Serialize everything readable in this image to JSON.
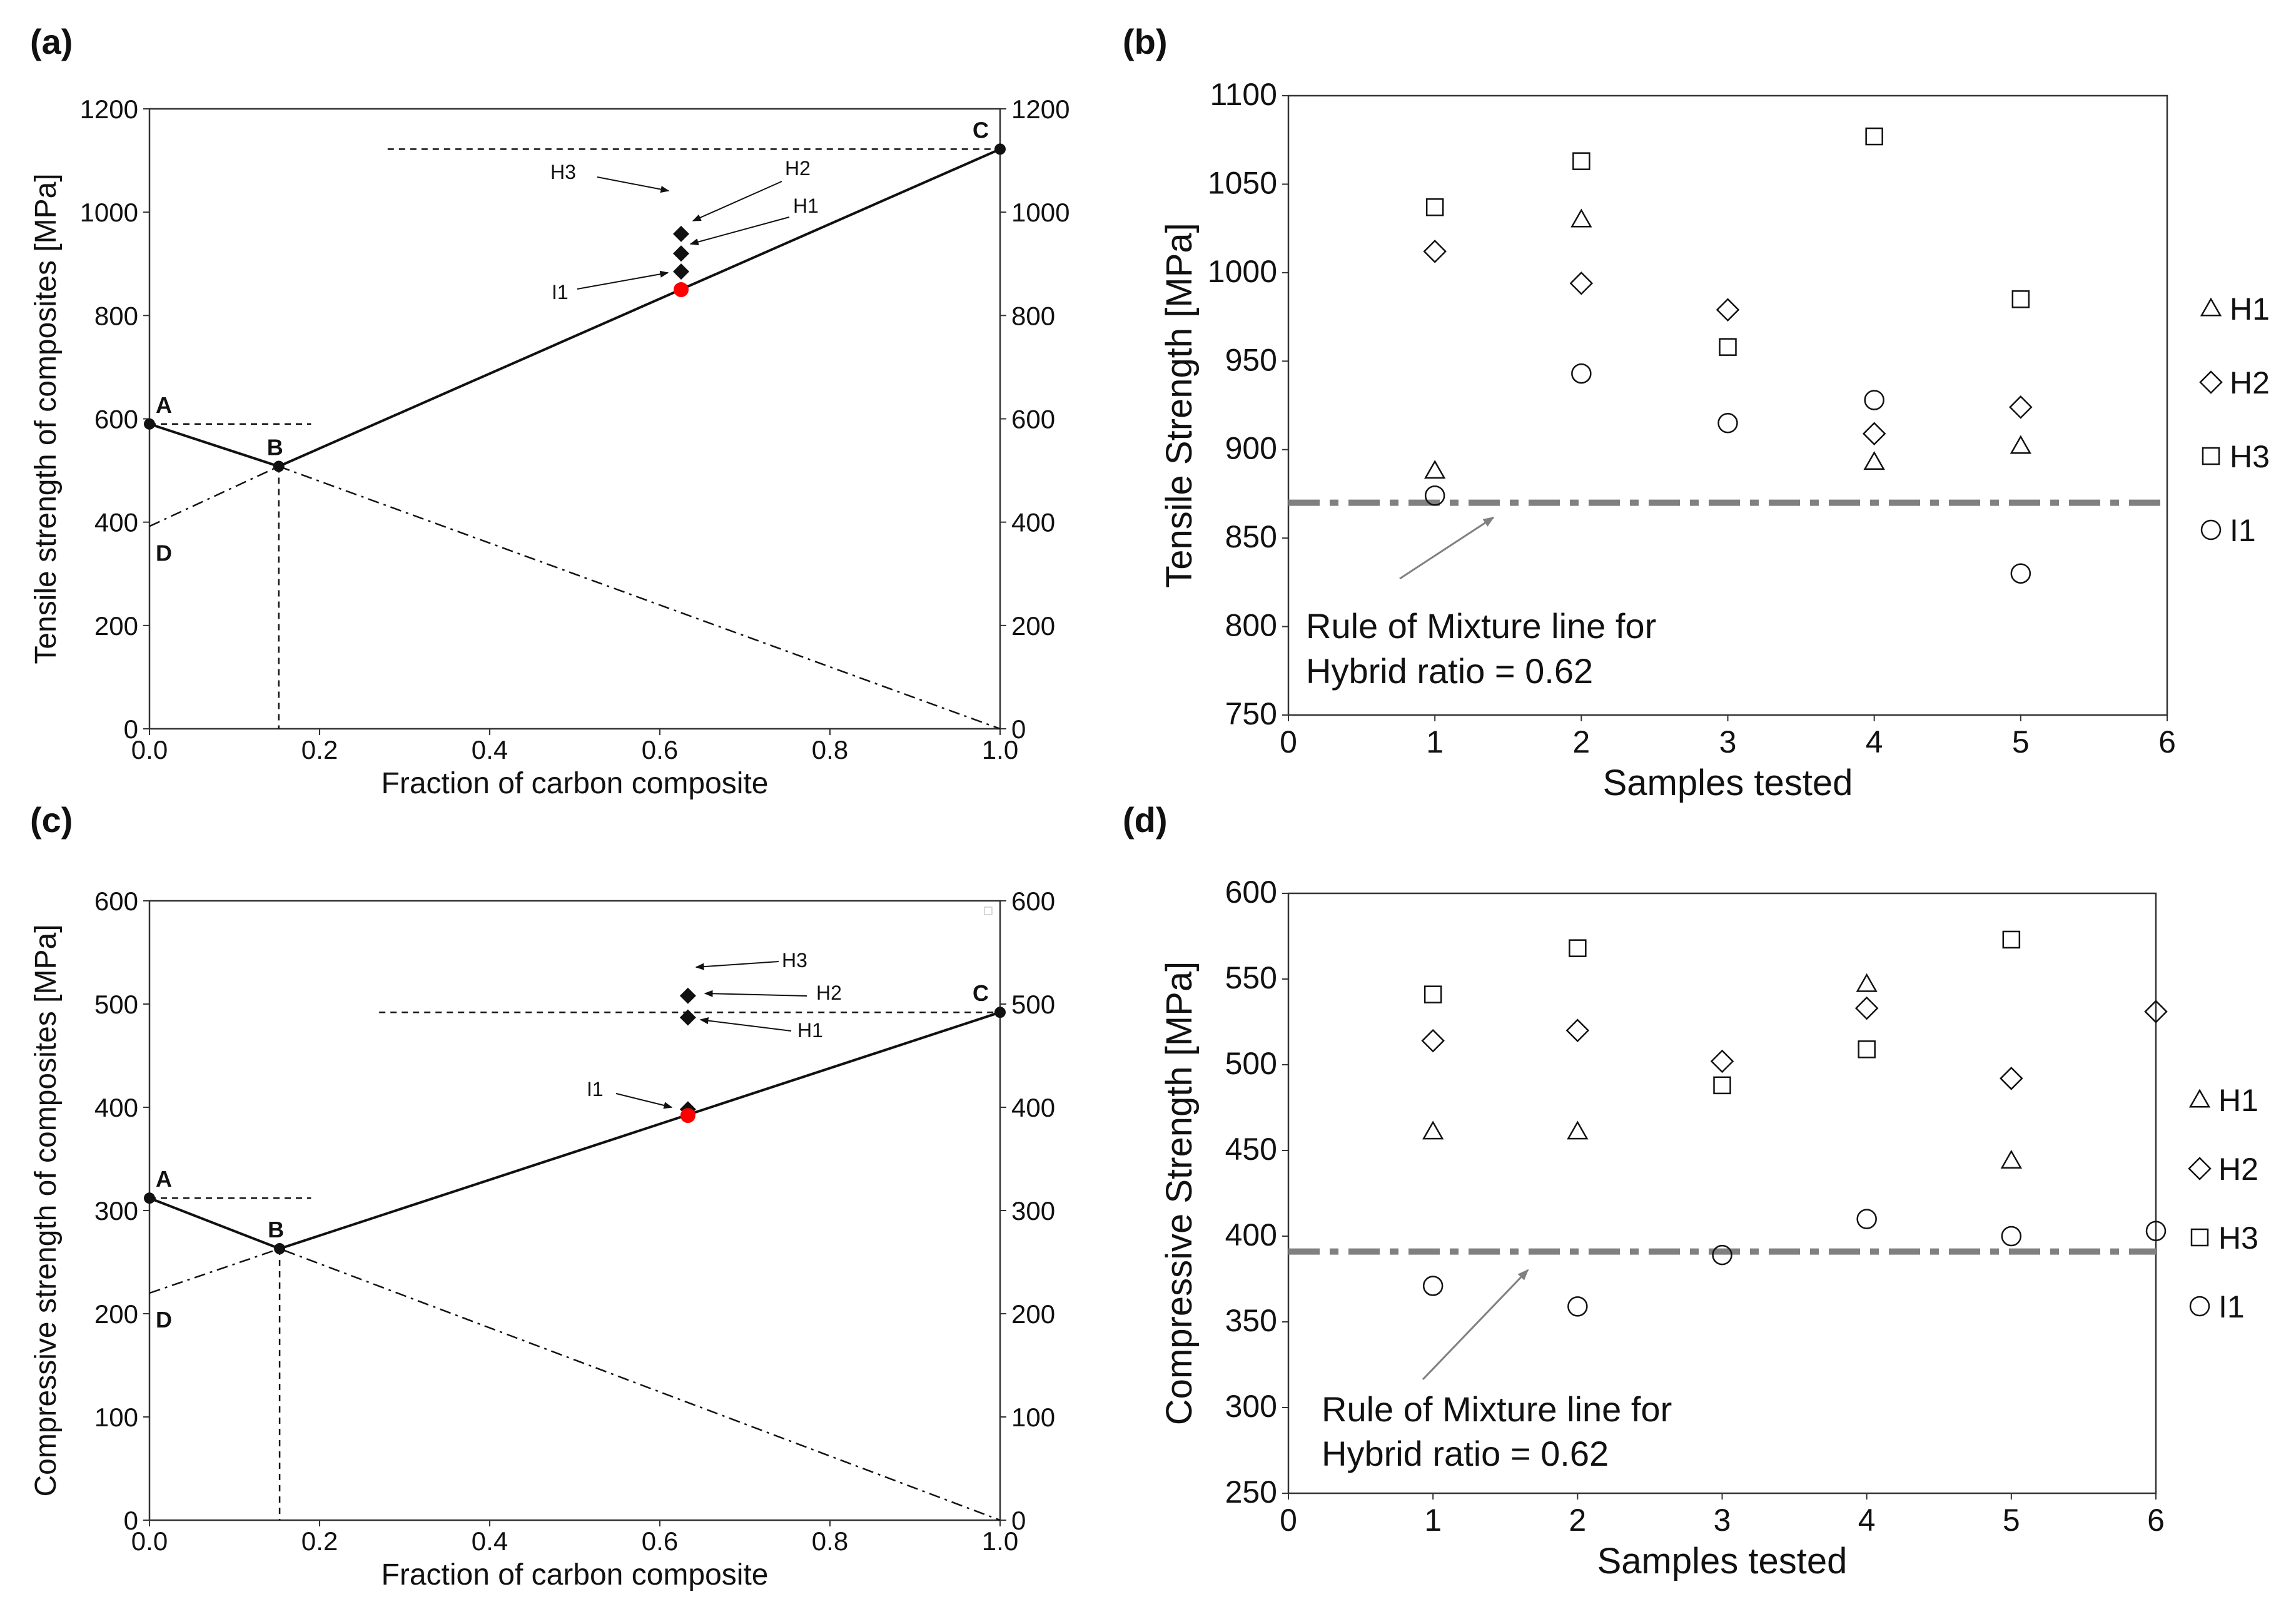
{
  "figure": {
    "panels": {
      "a": {
        "label": "(a)"
      },
      "b": {
        "label": "(b)"
      },
      "c": {
        "label": "(c)"
      },
      "d": {
        "label": "(d)"
      }
    }
  },
  "chart_data": [
    {
      "id": "a",
      "type": "line",
      "title": "",
      "xlabel": "Fraction of carbon composite",
      "ylabel": "Tensile strength of composites [MPa]",
      "xlim": [
        0,
        1
      ],
      "ylim": [
        0,
        1200
      ],
      "xticks": [
        "0.0",
        "0.2",
        "0.4",
        "0.6",
        "0.8",
        "1.0"
      ],
      "yticks": [
        "0",
        "200",
        "400",
        "600",
        "800",
        "1000",
        "1200"
      ],
      "yticks_right": [
        "0",
        "200",
        "400",
        "600",
        "800",
        "1000",
        "1200"
      ],
      "key_points": [
        {
          "name": "A",
          "x": 0.0,
          "y": 590
        },
        {
          "name": "B",
          "x": 0.152,
          "y": 508
        },
        {
          "name": "C",
          "x": 1.0,
          "y": 1122
        },
        {
          "name": "D",
          "x": 0.0,
          "y": 392
        }
      ],
      "lines": {
        "solid": [
          [
            0.0,
            590
          ],
          [
            0.152,
            508
          ],
          [
            1.0,
            1122
          ]
        ],
        "dashdot": [
          [
            0.0,
            392
          ],
          [
            0.152,
            508
          ],
          [
            1.0,
            0
          ]
        ],
        "dashed": [
          [
            [
              0.0,
              590
            ],
            [
              0.19,
              590
            ]
          ],
          [
            [
              0.152,
              508
            ],
            [
              0.152,
              0
            ]
          ],
          [
            [
              0.28,
              1122
            ],
            [
              1.0,
              1122
            ]
          ]
        ]
      },
      "rule_of_mixture_point": {
        "x": 0.625,
        "y": 850,
        "color": "#ff0000"
      },
      "hybrid_points": [
        {
          "name": "H1",
          "x": 0.625,
          "y": 885
        },
        {
          "name": "H2",
          "x": 0.625,
          "y": 920
        },
        {
          "name": "H3",
          "x": 0.625,
          "y": 958
        }
      ],
      "annotations": [
        "H3",
        "H2",
        "H1",
        "I1"
      ]
    },
    {
      "id": "b",
      "type": "scatter",
      "title": "",
      "xlabel": "Samples tested",
      "ylabel": "Tensile Strength [MPa]",
      "xlim": [
        0,
        6
      ],
      "ylim": [
        750,
        1100
      ],
      "xticks": [
        "0",
        "1",
        "2",
        "3",
        "4",
        "5",
        "6"
      ],
      "yticks": [
        "750",
        "800",
        "850",
        "900",
        "950",
        "1000",
        "1050",
        "1100"
      ],
      "series": [
        {
          "name": "H1",
          "marker": "triangle",
          "x": [
            1,
            2,
            4,
            5
          ],
          "values": [
            888,
            1030,
            893,
            902
          ]
        },
        {
          "name": "H2",
          "marker": "diamond",
          "x": [
            1,
            2,
            3,
            4,
            5
          ],
          "values": [
            1012,
            994,
            979,
            909,
            924
          ]
        },
        {
          "name": "H3",
          "marker": "square",
          "x": [
            1,
            2,
            3,
            4,
            5
          ],
          "values": [
            1037,
            1063,
            958,
            1077,
            985
          ]
        },
        {
          "name": "I1",
          "marker": "circle",
          "x": [
            1,
            2,
            3,
            4,
            5
          ],
          "values": [
            874,
            943,
            915,
            928,
            830
          ]
        }
      ],
      "reference_line": {
        "y": 870,
        "color": "#808080",
        "label_line1": "Rule of Mixture line for",
        "label_line2": "Hybrid ratio = 0.62"
      },
      "legend": [
        "H1",
        "H2",
        "H3",
        "I1"
      ],
      "legend_position": "right"
    },
    {
      "id": "c",
      "type": "line",
      "title": "",
      "xlabel": "Fraction of carbon composite",
      "ylabel": "Compressive strength of composites [MPa]",
      "xlim": [
        0,
        1
      ],
      "ylim": [
        0,
        600
      ],
      "xticks": [
        "0.0",
        "0.2",
        "0.4",
        "0.6",
        "0.8",
        "1.0"
      ],
      "yticks": [
        "0",
        "100",
        "200",
        "300",
        "400",
        "500",
        "600"
      ],
      "yticks_right": [
        "0",
        "100",
        "200",
        "300",
        "400",
        "500",
        "600"
      ],
      "key_points": [
        {
          "name": "A",
          "x": 0.0,
          "y": 312
        },
        {
          "name": "B",
          "x": 0.153,
          "y": 263
        },
        {
          "name": "C",
          "x": 1.0,
          "y": 492
        },
        {
          "name": "D",
          "x": 0.0,
          "y": 220
        }
      ],
      "lines": {
        "solid": [
          [
            0.0,
            312
          ],
          [
            0.153,
            263
          ],
          [
            1.0,
            492
          ]
        ],
        "dashdot": [
          [
            0.0,
            220
          ],
          [
            0.153,
            263
          ],
          [
            1.0,
            0
          ]
        ],
        "dashed": [
          [
            [
              0.0,
              312
            ],
            [
              0.19,
              312
            ]
          ],
          [
            [
              0.153,
              263
            ],
            [
              0.153,
              0
            ]
          ],
          [
            [
              0.27,
              492
            ],
            [
              1.0,
              492
            ]
          ]
        ]
      },
      "rule_of_mixture_point": {
        "x": 0.633,
        "y": 392,
        "color": "#ff0000"
      },
      "hybrid_points": [
        {
          "name": "I1",
          "x": 0.633,
          "y": 398
        },
        {
          "name": "H1",
          "x": 0.633,
          "y": 487
        },
        {
          "name": "H2",
          "x": 0.633,
          "y": 508
        }
      ],
      "annotations": [
        "H3",
        "H2",
        "H1",
        "I1"
      ]
    },
    {
      "id": "d",
      "type": "scatter",
      "title": "",
      "xlabel": "Samples tested",
      "ylabel": "Compressive Strength [MPa]",
      "xlim": [
        0,
        6
      ],
      "ylim": [
        250,
        600
      ],
      "xticks": [
        "0",
        "1",
        "2",
        "3",
        "4",
        "5",
        "6"
      ],
      "yticks": [
        "250",
        "300",
        "350",
        "400",
        "450",
        "500",
        "550",
        "600"
      ],
      "series": [
        {
          "name": "H1",
          "marker": "triangle",
          "x": [
            1,
            2,
            4,
            5
          ],
          "values": [
            461,
            461,
            547,
            444
          ]
        },
        {
          "name": "H2",
          "marker": "diamond",
          "x": [
            1,
            2,
            3,
            4,
            5,
            6
          ],
          "values": [
            514,
            520,
            502,
            533,
            492,
            531
          ]
        },
        {
          "name": "H3",
          "marker": "square",
          "x": [
            1,
            2,
            3,
            4,
            5
          ],
          "values": [
            541,
            568,
            488,
            509,
            573
          ]
        },
        {
          "name": "I1",
          "marker": "circle",
          "x": [
            1,
            2,
            3,
            4,
            5,
            6
          ],
          "values": [
            371,
            359,
            389,
            410,
            400,
            403
          ]
        }
      ],
      "reference_line": {
        "y": 391,
        "color": "#808080",
        "label_line1": "Rule of Mixture line for",
        "label_line2": "Hybrid ratio = 0.62"
      },
      "legend": [
        "H1",
        "H2",
        "H3",
        "I1"
      ],
      "legend_position": "right"
    }
  ]
}
